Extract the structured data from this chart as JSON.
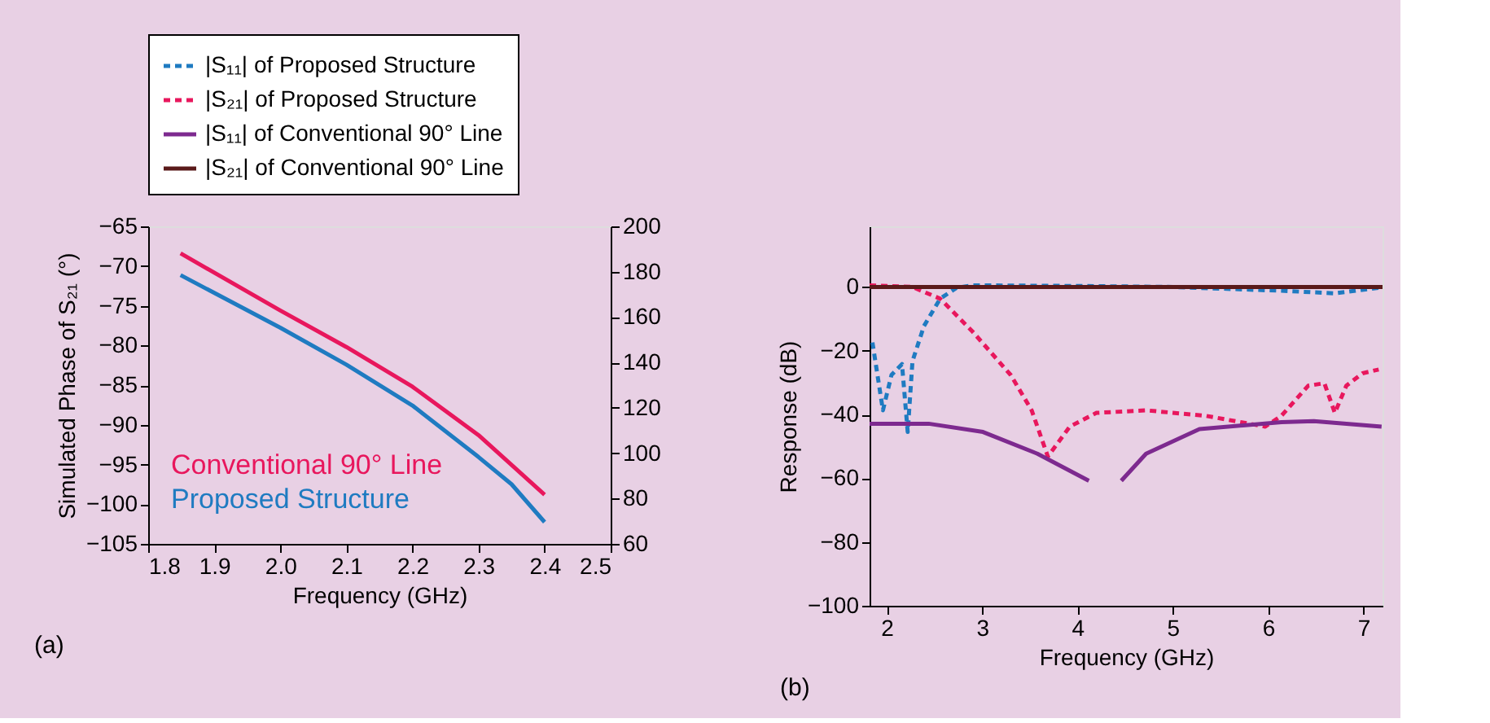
{
  "chart_data": [
    {
      "type": "line",
      "xlabel": "Frequency (GHz)",
      "ylabel": "Simulated Phase of S₂₁ (°)",
      "xlim": [
        1.8,
        2.5
      ],
      "xticks": [
        1.8,
        1.9,
        {
          "value": 2.0,
          "label": "2.0"
        },
        2.1,
        2.2,
        2.3,
        2.4,
        2.5
      ],
      "ylim": [
        -105,
        -65
      ],
      "yticks": [
        -105,
        -100,
        -95,
        -90,
        -85,
        -80,
        -75,
        -70,
        -65
      ],
      "y2lim": [
        60,
        200
      ],
      "y2ticks": [
        60,
        80,
        100,
        120,
        140,
        160,
        180,
        200
      ],
      "grid": false,
      "legend": false,
      "annotations": [
        "(a)"
      ],
      "series": [
        {
          "name": "Conventional 90° Line",
          "color": "#e8175d",
          "axis": "y",
          "line_style": "solid",
          "x": [
            1.849,
            2.0,
            2.1,
            2.2,
            2.3,
            2.4
          ],
          "values": [
            -68.4,
            -75.6,
            -80.2,
            -85.2,
            -91.3,
            -98.8
          ]
        },
        {
          "name": "Proposed Structure",
          "color": "#1f7bc1",
          "axis": "y2",
          "line_style": "solid",
          "x": [
            1.849,
            2.0,
            2.1,
            2.2,
            2.3,
            2.35,
            2.4
          ],
          "values": [
            178.5,
            155.3,
            139.0,
            121.0,
            98.3,
            86.3,
            69.6
          ]
        }
      ]
    },
    {
      "type": "line",
      "xlabel": "Frequency (GHz)",
      "ylabel": "Response (dB)",
      "xlim": [
        1.82,
        7.2
      ],
      "xticks": [
        {
          "value": 2,
          "label": "2"
        },
        {
          "value": 3,
          "label": "3"
        },
        {
          "value": 4,
          "label": "4"
        },
        {
          "value": 5,
          "label": "5"
        },
        {
          "value": 6,
          "label": "6"
        },
        {
          "value": 7,
          "label": "7"
        }
      ],
      "ylim": [
        -100,
        19
      ],
      "yticks": [
        -100,
        -80,
        -60,
        -40,
        -20,
        0
      ],
      "grid": false,
      "legend": "top",
      "annotations": [
        "(b)"
      ],
      "series": [
        {
          "name": "|S₁₁| of Proposed Structure",
          "color": "#1f7bc1",
          "line_style": "dashed",
          "x": [
            1.85,
            1.96,
            2.05,
            2.16,
            2.22,
            2.27,
            2.39,
            2.56,
            2.73,
            2.9,
            4.0,
            5.0,
            6.14,
            6.7,
            7.16
          ],
          "values": [
            -17.4,
            -38.7,
            -27.6,
            -24.2,
            -45.5,
            -23.3,
            -12.3,
            -3.7,
            -0.3,
            0.5,
            0.3,
            0,
            -1.2,
            -2,
            -0.3
          ]
        },
        {
          "name": "|S₂₁| of Proposed Structure",
          "color": "#e8175d",
          "line_style": "dashed",
          "x": [
            1.82,
            2.27,
            2.56,
            2.9,
            3.3,
            3.52,
            3.69,
            3.92,
            4.2,
            4.72,
            5.34,
            5.97,
            6.14,
            6.42,
            6.59,
            6.7,
            6.82,
            6.99,
            7.16
          ],
          "values": [
            0.5,
            0,
            -3.7,
            -14,
            -27.6,
            -38.7,
            -53.2,
            -43.8,
            -39.5,
            -38.7,
            -40.4,
            -43.8,
            -40.4,
            -31,
            -30.2,
            -39.5,
            -31,
            -27.1,
            -25.9
          ]
        },
        {
          "name": "|S₁₁| of Conventional 90° Line",
          "color": "#7d2a8f",
          "line_style": "solid",
          "x": [
            1.82,
            2.44,
            3.01,
            3.58,
            4.12,
            4.3,
            4.46,
            4.72,
            5.28,
            6.14,
            6.48,
            7.19
          ],
          "values": [
            -42.9,
            -42.9,
            -45.5,
            -52.3,
            -60.8,
            null,
            -60.8,
            -52.3,
            -44.6,
            -42.4,
            -42.1,
            -43.8
          ]
        },
        {
          "name": "|S₂₁| of Conventional 90° Line",
          "color": "#5a1a1a",
          "line_style": "solid",
          "x": [
            1.82,
            4.5,
            7.2
          ],
          "values": [
            0,
            0,
            0
          ]
        }
      ]
    }
  ]
}
